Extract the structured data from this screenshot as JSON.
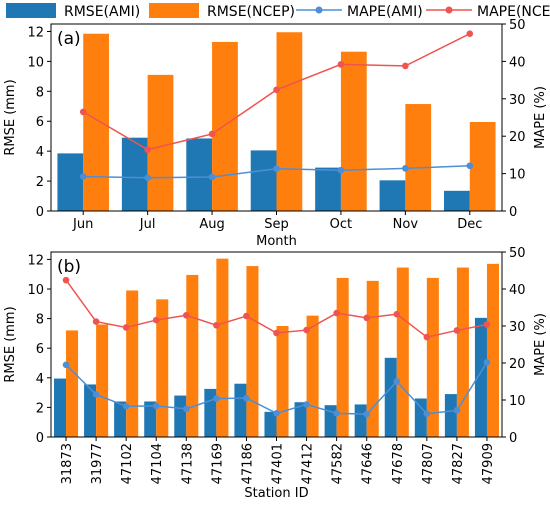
{
  "legend": {
    "items": [
      {
        "label": "RMSE(AMI)",
        "kind": "bar",
        "color": "#1f77b4"
      },
      {
        "label": "RMSE(NCEP)",
        "kind": "bar",
        "color": "#ff7f0e"
      },
      {
        "label": "MAPE(AMI)",
        "kind": "line",
        "color": "#1f77b4"
      },
      {
        "label": "MAPE(NCEP)",
        "kind": "line",
        "color": "#ff7f0e"
      }
    ]
  },
  "colors": {
    "ami_bar": "#1f77b4",
    "ncep_bar": "#ff7f0e",
    "ami_line": "#4c8fd6",
    "ncep_line": "#f0544f"
  },
  "chart_data": [
    {
      "type": "bar",
      "panel_label": "(a)",
      "xlabel": "Month",
      "ylabel": "RMSE (mm)",
      "y2label": "MAPE (%)",
      "ylim": [
        0,
        12.5
      ],
      "y2lim": [
        0,
        50
      ],
      "yticks": [
        0,
        2,
        4,
        6,
        8,
        10,
        12
      ],
      "y2ticks": [
        0,
        10,
        20,
        30,
        40,
        50
      ],
      "categories": [
        "Jun",
        "Jul",
        "Aug",
        "Sep",
        "Oct",
        "Nov",
        "Dec"
      ],
      "series": [
        {
          "name": "RMSE(AMI)",
          "type": "bar",
          "axis": "left",
          "values": [
            3.85,
            4.9,
            4.85,
            4.05,
            2.9,
            2.05,
            1.35
          ]
        },
        {
          "name": "RMSE(NCEP)",
          "type": "bar",
          "axis": "left",
          "values": [
            11.85,
            9.1,
            11.3,
            11.95,
            10.65,
            7.15,
            5.95
          ]
        },
        {
          "name": "MAPE(AMI)",
          "type": "line",
          "axis": "right",
          "values": [
            9.2,
            8.9,
            9.1,
            11.3,
            10.9,
            11.4,
            12.1
          ]
        },
        {
          "name": "MAPE(NCEP)",
          "type": "line",
          "axis": "right",
          "values": [
            26.5,
            16.4,
            20.6,
            32.4,
            39.2,
            38.8,
            47.4
          ]
        }
      ]
    },
    {
      "type": "bar",
      "panel_label": "(b)",
      "xlabel": "Station ID",
      "ylabel": "RMSE (mm)",
      "y2label": "MAPE (%)",
      "ylim": [
        0,
        12.5
      ],
      "y2lim": [
        0,
        50
      ],
      "yticks": [
        0,
        2,
        4,
        6,
        8,
        10,
        12
      ],
      "y2ticks": [
        0,
        10,
        20,
        30,
        40,
        50
      ],
      "categories": [
        "31873",
        "31977",
        "47102",
        "47104",
        "47138",
        "47169",
        "47186",
        "47401",
        "47412",
        "47582",
        "47646",
        "47678",
        "47807",
        "47827",
        "47909"
      ],
      "series": [
        {
          "name": "RMSE(AMI)",
          "type": "bar",
          "axis": "left",
          "values": [
            3.95,
            3.55,
            2.4,
            2.4,
            2.8,
            3.25,
            3.6,
            1.7,
            2.35,
            2.15,
            2.2,
            5.35,
            2.6,
            2.9,
            8.05
          ]
        },
        {
          "name": "RMSE(NCEP)",
          "type": "bar",
          "axis": "left",
          "values": [
            7.2,
            7.6,
            9.9,
            9.3,
            10.95,
            12.05,
            11.55,
            7.5,
            8.2,
            10.75,
            10.55,
            11.45,
            10.75,
            11.45,
            11.7
          ]
        },
        {
          "name": "MAPE(AMI)",
          "type": "line",
          "axis": "right",
          "values": [
            19.5,
            11.5,
            8.3,
            8.4,
            7.6,
            10.4,
            10.5,
            6.4,
            8.8,
            6.4,
            6.2,
            15.0,
            6.3,
            7.2,
            20.2
          ]
        },
        {
          "name": "MAPE(NCEP)",
          "type": "line",
          "axis": "right",
          "values": [
            42.4,
            31.2,
            29.6,
            31.6,
            32.9,
            30.2,
            32.7,
            28.1,
            28.9,
            33.5,
            32.2,
            33.2,
            27.0,
            28.8,
            30.4
          ]
        }
      ]
    }
  ]
}
